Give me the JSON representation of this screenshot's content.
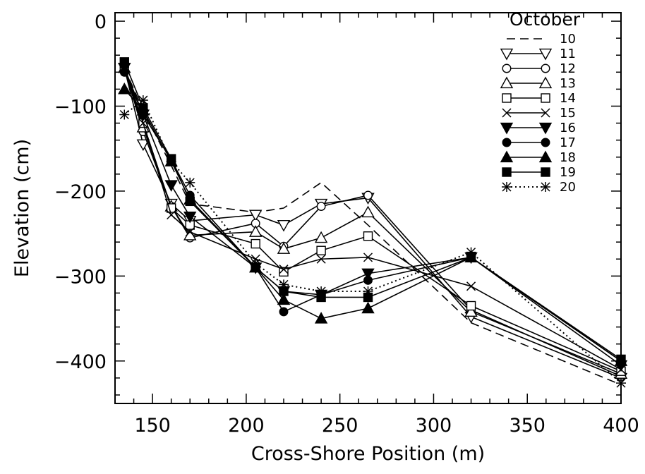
{
  "chart_data": {
    "type": "line",
    "title": "",
    "xlabel": "Cross-Shore Position (m)",
    "ylabel": "Elevation (cm)",
    "xlim": [
      130,
      400
    ],
    "ylim": [
      -450,
      10
    ],
    "x_ticks": [
      150,
      200,
      250,
      300,
      350,
      400
    ],
    "y_ticks": [
      0,
      -100,
      -200,
      -300,
      -400
    ],
    "x_tick_labels": [
      "150",
      "200",
      "250",
      "300",
      "350",
      "400"
    ],
    "y_tick_labels": [
      "0",
      "−100",
      "−200",
      "−300",
      "−400"
    ],
    "legend_title": "October",
    "legend_placement": "top-right",
    "grid": false,
    "series": [
      {
        "name": "10",
        "marker": "none",
        "dash": "dashed",
        "x": [
          135,
          145,
          160,
          170,
          205,
          220,
          240,
          265,
          320,
          400
        ],
        "y": [
          -55,
          -105,
          -170,
          -215,
          -225,
          -220,
          -190,
          -240,
          -355,
          -428
        ]
      },
      {
        "name": "11",
        "marker": "triangle-down-open",
        "dash": "solid",
        "x": [
          135,
          145,
          160,
          170,
          205,
          220,
          240,
          265,
          320,
          400
        ],
        "y": [
          -55,
          -145,
          -215,
          -235,
          -228,
          -240,
          -215,
          -208,
          -348,
          -420
        ]
      },
      {
        "name": "12",
        "marker": "circle-open",
        "dash": "solid",
        "x": [
          135,
          145,
          160,
          170,
          205,
          220,
          240,
          265,
          320,
          400
        ],
        "y": [
          -55,
          -130,
          -218,
          -255,
          -238,
          -265,
          -218,
          -205,
          -340,
          -418
        ]
      },
      {
        "name": "13",
        "marker": "triangle-up-open",
        "dash": "solid",
        "x": [
          135,
          145,
          160,
          170,
          205,
          220,
          240,
          265,
          320,
          400
        ],
        "y": [
          -55,
          -125,
          -218,
          -252,
          -248,
          -268,
          -255,
          -225,
          -342,
          -415
        ]
      },
      {
        "name": "14",
        "marker": "square-open",
        "dash": "solid",
        "x": [
          135,
          145,
          160,
          170,
          205,
          220,
          240,
          265,
          320,
          400
        ],
        "y": [
          -55,
          -120,
          -220,
          -240,
          -262,
          -295,
          -270,
          -253,
          -335,
          -412
        ]
      },
      {
        "name": "15",
        "marker": "x",
        "dash": "solid",
        "x": [
          135,
          145,
          160,
          170,
          205,
          220,
          240,
          265,
          320,
          400
        ],
        "y": [
          -55,
          -120,
          -228,
          -248,
          -280,
          -292,
          -280,
          -278,
          -312,
          -410
        ]
      },
      {
        "name": "16",
        "marker": "triangle-down-filled",
        "dash": "solid",
        "x": [
          135,
          145,
          160,
          170,
          205,
          220,
          240,
          265,
          320,
          400
        ],
        "y": [
          -55,
          -110,
          -193,
          -230,
          -290,
          -318,
          -322,
          -297,
          -278,
          -405
        ]
      },
      {
        "name": "17",
        "marker": "circle-filled",
        "dash": "solid",
        "x": [
          135,
          145,
          160,
          170,
          205,
          220,
          240,
          265,
          320,
          400
        ],
        "y": [
          -60,
          -110,
          -163,
          -205,
          -290,
          -342,
          -322,
          -305,
          -278,
          -400
        ]
      },
      {
        "name": "18",
        "marker": "triangle-up-filled",
        "dash": "solid",
        "x": [
          135,
          145,
          160,
          170,
          205,
          220,
          240,
          265,
          320,
          400
        ],
        "y": [
          -80,
          -105,
          -165,
          -210,
          -290,
          -328,
          -350,
          -338,
          -278,
          -400
        ]
      },
      {
        "name": "19",
        "marker": "square-filled",
        "dash": "solid",
        "x": [
          135,
          145,
          160,
          170,
          205,
          220,
          240,
          265,
          320,
          400
        ],
        "y": [
          -48,
          -102,
          -162,
          -212,
          -290,
          -318,
          -325,
          -325,
          -278,
          -398
        ]
      },
      {
        "name": "20",
        "marker": "asterisk",
        "dash": "dotted",
        "x": [
          135,
          145,
          160,
          170,
          205,
          220,
          240,
          265,
          320,
          400
        ],
        "y": [
          -110,
          -93,
          -165,
          -190,
          -285,
          -310,
          -318,
          -318,
          -272,
          -426
        ]
      }
    ]
  }
}
